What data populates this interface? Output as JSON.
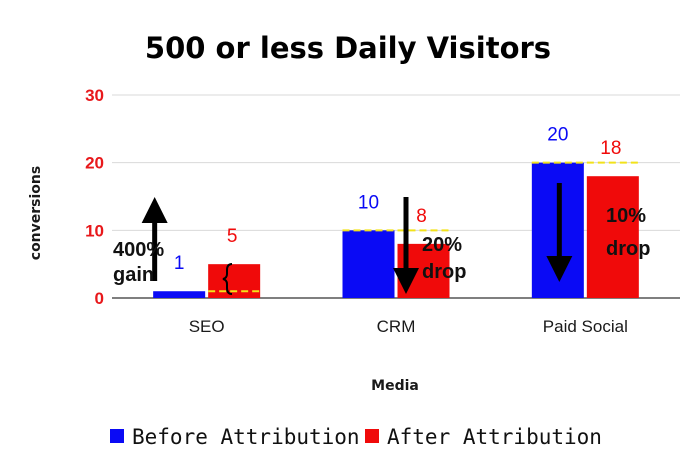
{
  "chart_data": {
    "type": "bar",
    "title": "500 or less Daily Visitors",
    "xlabel": "Media",
    "ylabel": "conversions",
    "categories": [
      "SEO",
      "CRM",
      "Paid Social"
    ],
    "series": [
      {
        "name": "Before Attribution",
        "values": [
          1,
          10,
          20
        ],
        "color": "#0a0af5"
      },
      {
        "name": "After Attribution",
        "values": [
          5,
          8,
          18
        ],
        "color": "#f00a0a"
      }
    ],
    "ylim": [
      0,
      30
    ],
    "yticks": [
      0,
      10,
      20,
      30
    ],
    "grid": true,
    "legend_position": "bottom",
    "annotations": [
      {
        "category": "SEO",
        "lines": [
          "400%",
          "gain"
        ],
        "direction": "up"
      },
      {
        "category": "CRM",
        "lines": [
          "20%",
          "drop"
        ],
        "direction": "down"
      },
      {
        "category": "Paid Social",
        "lines": [
          "10%",
          "drop"
        ],
        "direction": "down"
      }
    ]
  }
}
